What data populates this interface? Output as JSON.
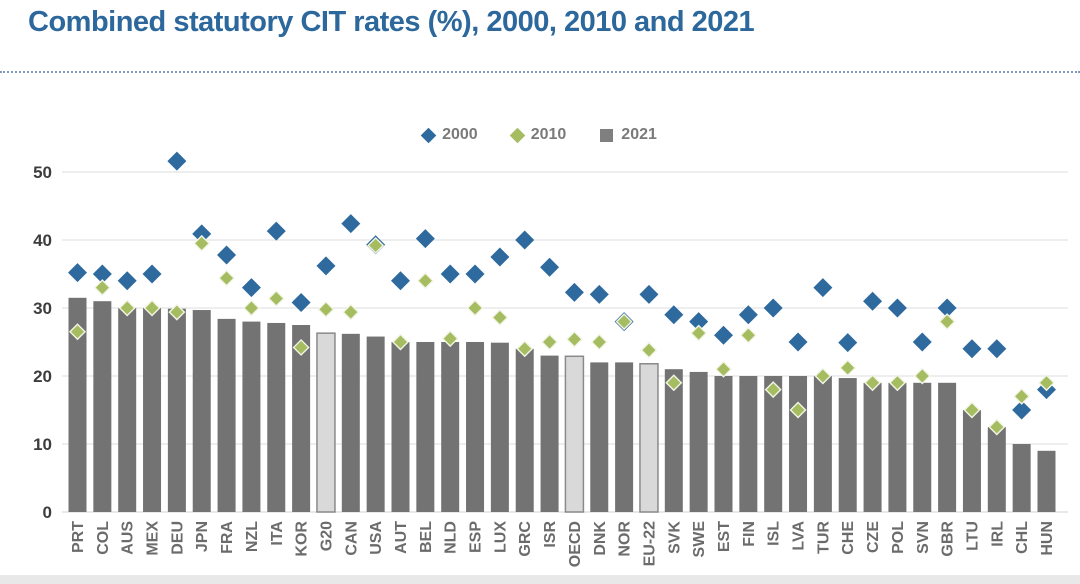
{
  "title": "Combined statutory CIT rates (%), 2000, 2010 and 2021",
  "legend": {
    "items": [
      {
        "label": "2000",
        "marker": "diamond",
        "color": "#2e6a9e"
      },
      {
        "label": "2010",
        "marker": "diamond",
        "color": "#a5bd60"
      },
      {
        "label": "2021",
        "marker": "square",
        "color": "#7f7f7f"
      }
    ]
  },
  "colors": {
    "title_blue": "#2d689c",
    "divider_blue": "#7e97c3",
    "bar_gray": "#737373",
    "aggregate_bar_fill": "#d9d9d9",
    "aggregate_bar_border": "#8a8a8a",
    "diamond_2000_blue": "#2e6a9e",
    "diamond_2010_green": "#a5bd60",
    "gridline": "#e4e4e4",
    "axis_label_gray": "#3d3d3d",
    "tick_label_gray": "#6b6b6b",
    "bottom_strip": "#e8e8e8"
  },
  "chart_data": {
    "type": "bar",
    "title": "Combined statutory CIT rates (%), 2000, 2010 and 2021",
    "xlabel": "",
    "ylabel": "",
    "ylim": [
      0,
      50
    ],
    "yticks": [
      0,
      10,
      20,
      30,
      40,
      50
    ],
    "grid": true,
    "legend_position": "top-center",
    "categories": [
      "PRT",
      "COL",
      "AUS",
      "MEX",
      "DEU",
      "JPN",
      "FRA",
      "NZL",
      "ITA",
      "KOR",
      "G20",
      "CAN",
      "USA",
      "AUT",
      "BEL",
      "NLD",
      "ESP",
      "LUX",
      "GRC",
      "ISR",
      "OECD",
      "DNK",
      "NOR",
      "EU-22",
      "SVK",
      "SWE",
      "EST",
      "FIN",
      "ISL",
      "LVA",
      "TUR",
      "CHE",
      "CZE",
      "POL",
      "SVN",
      "GBR",
      "LTU",
      "IRL",
      "CHL",
      "HUN"
    ],
    "aggregate_categories": [
      "G20",
      "OECD",
      "EU-22"
    ],
    "series": [
      {
        "name": "2000",
        "style": "diamond",
        "color": "#2e6a9e",
        "values": [
          35.2,
          35,
          34,
          35,
          51.6,
          40.9,
          37.8,
          33,
          41.3,
          30.8,
          36.2,
          42.4,
          39.3,
          34,
          40.2,
          35,
          35,
          37.5,
          40,
          36,
          32.3,
          32,
          28,
          32,
          29,
          28,
          26,
          29,
          30,
          25,
          33,
          24.9,
          31,
          30,
          25,
          30,
          24,
          24,
          15,
          18
        ]
      },
      {
        "name": "2010",
        "style": "diamond",
        "color": "#a5bd60",
        "values": [
          26.5,
          33,
          30,
          30,
          29.4,
          39.5,
          34.4,
          30,
          31.4,
          24.2,
          29.8,
          29.4,
          39.2,
          25,
          34,
          25.5,
          30,
          28.6,
          24,
          25,
          25.4,
          25,
          28,
          23.8,
          19,
          26.3,
          21,
          26,
          18,
          15,
          20,
          21.2,
          19,
          19,
          20,
          28,
          15,
          12.5,
          17,
          19
        ]
      },
      {
        "name": "2021",
        "style": "bar",
        "color": "#737373",
        "values": [
          31.5,
          31,
          30,
          30,
          29.9,
          29.7,
          28.4,
          28,
          27.8,
          27.5,
          26.3,
          26.2,
          25.8,
          25,
          25,
          25,
          25,
          24.9,
          24,
          23,
          22.9,
          22,
          22,
          21.8,
          21,
          20.6,
          20,
          20,
          20,
          20,
          20,
          19.7,
          19,
          19,
          19,
          19,
          15,
          12.5,
          10,
          9
        ]
      }
    ]
  }
}
